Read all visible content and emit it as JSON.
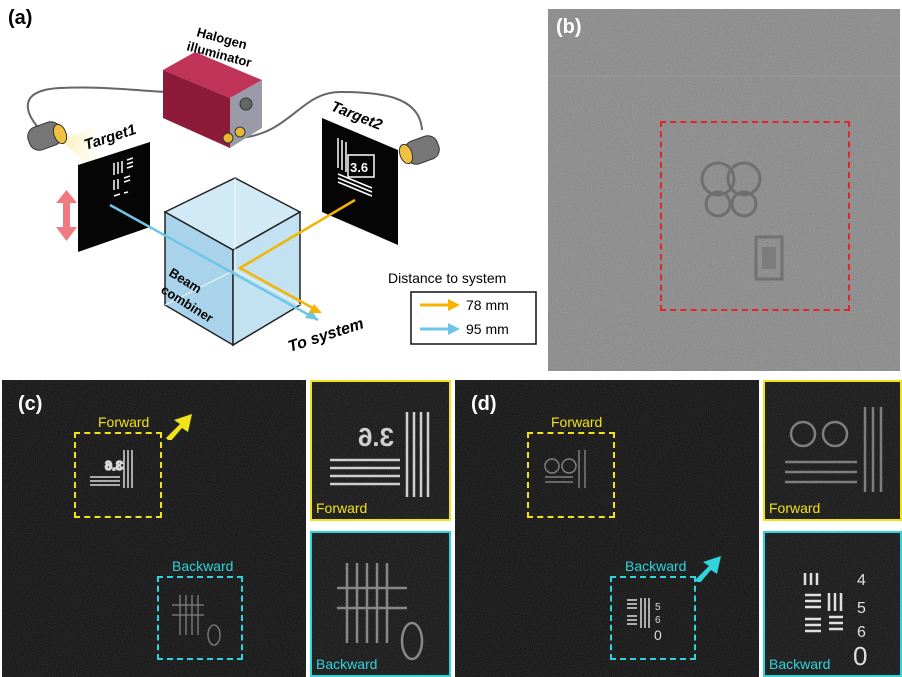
{
  "panel_a": {
    "label": "(a)",
    "illuminator_line1": "Halogen",
    "illuminator_line2": "illuminator",
    "target1": "Target1",
    "target2": "Target2",
    "target2_number": "3.6",
    "beam_line1": "Beam",
    "beam_line2": "combiner",
    "to_system": "To system",
    "legend_title": "Distance to system",
    "legend_items": [
      {
        "label": "78 mm",
        "color": "#f4b400"
      },
      {
        "label": "95 mm",
        "color": "#6ec6e6"
      }
    ]
  },
  "panel_b": {
    "label": "(b)",
    "roi_color": "#e0262a"
  },
  "panel_c": {
    "label": "(c)",
    "forward": "Forward",
    "backward": "Backward",
    "inset_top": "Forward",
    "inset_bottom": "Backward",
    "inset_number": "3.6",
    "forward_color": "#f2e21a",
    "backward_color": "#2fd4dc"
  },
  "panel_d": {
    "label": "(d)",
    "forward": "Forward",
    "backward": "Backward",
    "inset_top": "Forward",
    "inset_bottom": "Backward",
    "inset_digits": [
      "4",
      "5",
      "6",
      "0"
    ]
  }
}
